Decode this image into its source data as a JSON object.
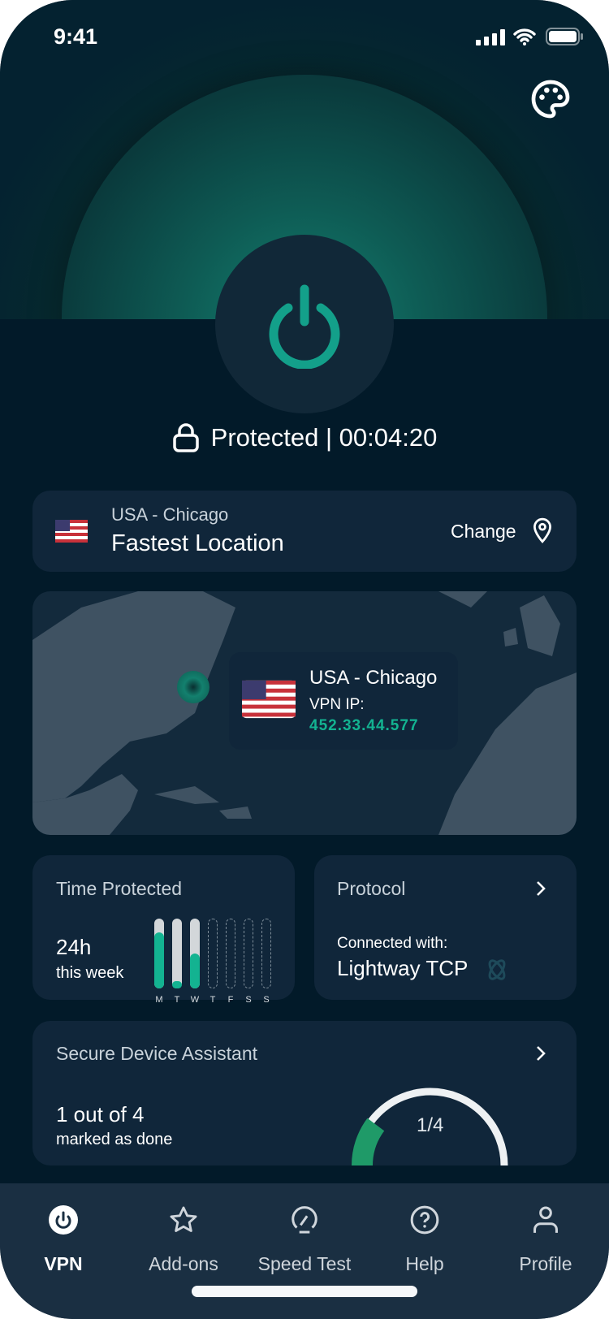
{
  "status_bar": {
    "time": "9:41"
  },
  "header": {
    "theme_icon": "palette-icon"
  },
  "connection": {
    "status": "Protected | 00:04:20",
    "accent": "#13a08a"
  },
  "location": {
    "country_city": "USA - Chicago",
    "label": "Fastest Location",
    "change": "Change"
  },
  "map": {
    "city": "USA - Chicago",
    "ip_label": "VPN IP:",
    "ip": "452.33.44.577"
  },
  "time_protected": {
    "title": "Time Protected",
    "hours": "24h",
    "period": "this week",
    "days": [
      "M",
      "T",
      "W",
      "T",
      "F",
      "S",
      "S"
    ],
    "fill": [
      0.8,
      0.1,
      0.5,
      0,
      0,
      0,
      0
    ]
  },
  "protocol": {
    "title": "Protocol",
    "connected": "Connected with:",
    "name": "Lightway TCP"
  },
  "assistant": {
    "title": "Secure Device Assistant",
    "count": "1 out of 4",
    "status": "marked as done",
    "gauge": "1/4",
    "progress": 0.25
  },
  "tabs": [
    {
      "label": "VPN",
      "icon": "power-icon",
      "active": true
    },
    {
      "label": "Add-ons",
      "icon": "star-icon"
    },
    {
      "label": "Speed Test",
      "icon": "speedometer-icon"
    },
    {
      "label": "Help",
      "icon": "help-icon"
    },
    {
      "label": "Profile",
      "icon": "user-icon"
    }
  ]
}
